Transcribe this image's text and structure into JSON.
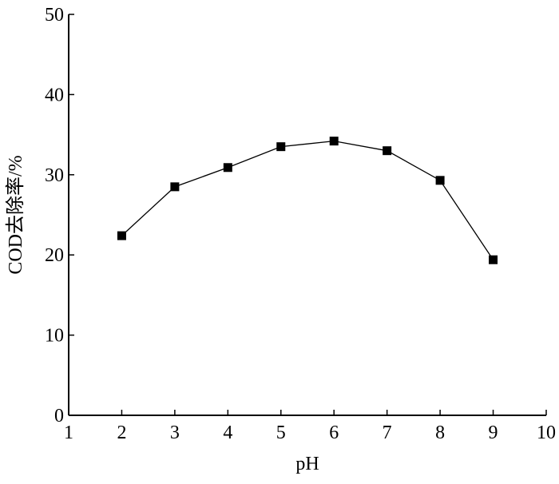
{
  "chart_data": {
    "type": "line",
    "title": "",
    "xlabel": "pH",
    "ylabel": "COD去除率/%",
    "xlim": [
      1,
      10
    ],
    "ylim": [
      0,
      50
    ],
    "xticks": [
      1,
      2,
      3,
      4,
      5,
      6,
      7,
      8,
      9,
      10
    ],
    "yticks": [
      0,
      10,
      20,
      30,
      40,
      50
    ],
    "grid": false,
    "marker": "square",
    "color": "#000000",
    "series": [
      {
        "x": [
          2,
          3,
          4,
          5,
          6,
          7,
          8,
          9
        ],
        "y": [
          22.4,
          28.5,
          30.9,
          33.5,
          34.2,
          33.0,
          29.3,
          19.4
        ]
      }
    ]
  }
}
